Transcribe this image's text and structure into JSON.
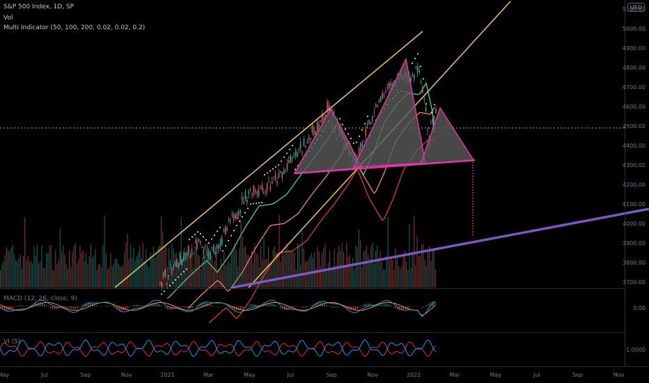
{
  "header": {
    "title": "S&P 500 Index, 1D, SP",
    "vol_label": "Vol",
    "indicator_label": "Multi Indicator (50, 100, 200, 0.02, 0.02, 0.2)",
    "currency": "USD"
  },
  "colors": {
    "background": "#000000",
    "candle_up": "#26a69a",
    "candle_down": "#ef5350",
    "channel_lines": "#f0c75e",
    "pattern_fill": "#5a5a5a",
    "pattern_stroke": "#e535ab",
    "support_line": "#7e57c2",
    "ma50": "#3ddc97",
    "ma100": "#ff8a65",
    "ma200": "#e53935",
    "sar_dots": "#ffffff",
    "macd_line": "#2196f3",
    "signal_line": "#ff9800",
    "vi_plus": "#2196f3",
    "vi_minus": "#e91e63"
  },
  "chart_data": [
    {
      "type": "candlestick",
      "title": "S&P 500 Index, 1D, SP",
      "x_ticks": [
        "May",
        "Jul",
        "Sep",
        "Nov",
        "2021",
        "Mar",
        "May",
        "Jul",
        "Sep",
        "Nov",
        "2022",
        "Mar",
        "May",
        "Jul",
        "Sep",
        "Nov"
      ],
      "y_ticks": [
        5100,
        5000,
        4900,
        4800,
        4700,
        4600,
        4500,
        4400,
        4300,
        4200,
        4100,
        4000,
        3900,
        3800,
        3700
      ],
      "ylim": [
        3670,
        5110
      ],
      "last_price_line": 4490,
      "pattern": "head-and-shoulders",
      "pattern_points": {
        "left_shoulder": 4600,
        "head": 4810,
        "right_shoulder": 4600,
        "neckline": [
          4270,
          4320
        ]
      },
      "target": 3940,
      "grid": false,
      "legend": "top-left"
    },
    {
      "type": "line",
      "title": "MACD (12, 26, close, 9)",
      "y_ticks": [
        "0.00"
      ]
    },
    {
      "type": "line",
      "title": "VI (5)",
      "y_ticks": [
        "1.0000"
      ]
    }
  ]
}
